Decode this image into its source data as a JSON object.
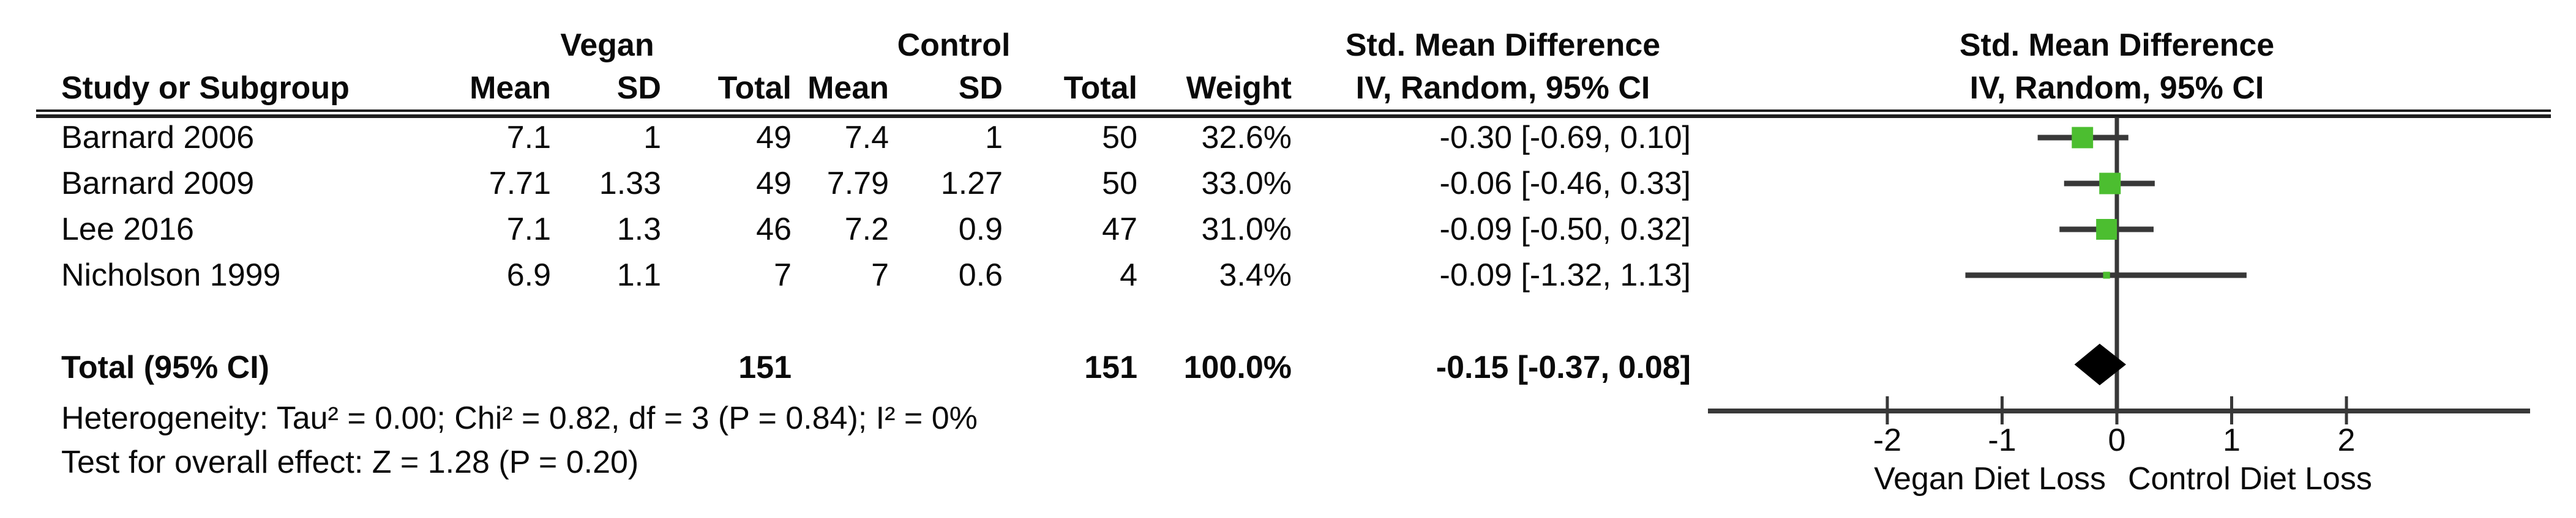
{
  "header": {
    "group1_label": "Vegan",
    "group2_label": "Control",
    "effect_col_title": "Std. Mean Difference",
    "effect_col_subtitle": "IV, Random, 95% CI",
    "plot_col_title": "Std. Mean Difference",
    "plot_col_subtitle": "IV, Random, 95% CI",
    "study_col": "Study or Subgroup",
    "mean_col": "Mean",
    "sd_col": "SD",
    "total_col": "Total",
    "mean2_col": "Mean",
    "sd2_col": "SD",
    "total2_col": "Total",
    "weight_col": "Weight"
  },
  "table": {
    "rows": [
      {
        "study": "Barnard 2006",
        "mean1": "7.1",
        "sd1": "1",
        "total1": "49",
        "mean2": "7.4",
        "sd2": "1",
        "total2": "50",
        "weight": "32.6%",
        "ci": "-0.30 [-0.69, 0.10]"
      },
      {
        "study": "Barnard 2009",
        "mean1": "7.71",
        "sd1": "1.33",
        "total1": "49",
        "mean2": "7.79",
        "sd2": "1.27",
        "total2": "50",
        "weight": "33.0%",
        "ci": "-0.06 [-0.46, 0.33]"
      },
      {
        "study": "Lee 2016",
        "mean1": "7.1",
        "sd1": "1.3",
        "total1": "46",
        "mean2": "7.2",
        "sd2": "0.9",
        "total2": "47",
        "weight": "31.0%",
        "ci": "-0.09 [-0.50, 0.32]"
      },
      {
        "study": "Nicholson 1999",
        "mean1": "6.9",
        "sd1": "1.1",
        "total1": "7",
        "mean2": "7",
        "sd2": "0.6",
        "total2": "4",
        "weight": "3.4%",
        "ci": "-0.09 [-1.32, 1.13]"
      }
    ],
    "total": {
      "label": "Total (95% CI)",
      "total1": "151",
      "total2": "151",
      "weight": "100.0%",
      "ci": "-0.15 [-0.37, 0.08]"
    }
  },
  "footer": {
    "heterogeneity": "Heterogeneity: Tau² = 0.00; Chi² = 0.82, df = 3 (P = 0.84); I² = 0%",
    "overall_effect": "Test for overall effect: Z = 1.28 (P = 0.20)"
  },
  "chart_data": {
    "type": "scatter",
    "subtype": "forest-plot",
    "title": "Std. Mean Difference",
    "subtitle": "IV, Random, 95% CI",
    "x_ticks": [
      -2,
      -1,
      0,
      1,
      2
    ],
    "xlim": [
      -3.56,
      3.6
    ],
    "xlabel_left": "Vegan Diet Loss",
    "xlabel_right": "Control Diet Loss",
    "marker_color": "#4cbe30",
    "ci_line_color": "#383838",
    "diamond_color": "#000000",
    "grid": false,
    "studies": [
      {
        "name": "Barnard 2006",
        "smd": -0.3,
        "ci_low": -0.69,
        "ci_high": 0.1,
        "weight_pct": 32.6
      },
      {
        "name": "Barnard 2009",
        "smd": -0.06,
        "ci_low": -0.46,
        "ci_high": 0.33,
        "weight_pct": 33.0
      },
      {
        "name": "Lee 2016",
        "smd": -0.09,
        "ci_low": -0.5,
        "ci_high": 0.32,
        "weight_pct": 31.0
      },
      {
        "name": "Nicholson 1999",
        "smd": -0.09,
        "ci_low": -1.32,
        "ci_high": 1.13,
        "weight_pct": 3.4
      }
    ],
    "total": {
      "name": "Total (95% CI)",
      "smd": -0.15,
      "ci_low": -0.37,
      "ci_high": 0.08,
      "weight_pct": 100.0
    }
  }
}
